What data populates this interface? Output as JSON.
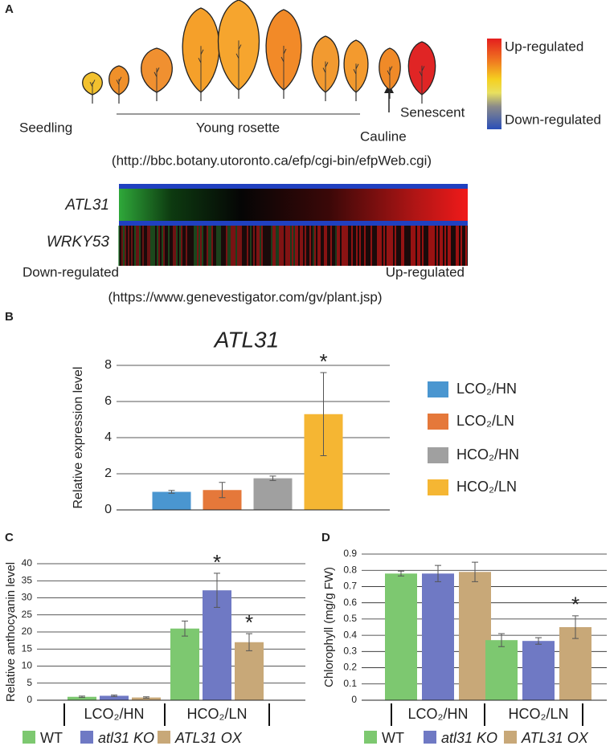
{
  "panel_a": {
    "label": "A",
    "stages": [
      "Seedling",
      "Young rosette",
      "Cauline",
      "Senescent"
    ],
    "scale_high": "Up-regulated",
    "scale_low": "Down-regulated",
    "source_1": "(http://bbc.botany.utoronto.ca/efp/cgi-bin/efpWeb.cgi)",
    "genes": [
      "ATL31",
      "WRKY53"
    ],
    "heatmap_low": "Down-regulated",
    "heatmap_high": "Up-regulated",
    "source_2": "(https://www.genevestigator.com/gv/plant.jsp)"
  },
  "chart_data": [
    {
      "type": "bar",
      "panel": "B",
      "title": "ATL31",
      "y_label": "Relative expression level",
      "ylim": [
        0,
        8
      ],
      "yticks": [
        0,
        2,
        4,
        6,
        8
      ],
      "grid": true,
      "legend": "right",
      "categories": [
        null
      ],
      "series": [
        {
          "name": "LCO₂/HN",
          "color": "#4a96d0",
          "values": [
            1.0
          ],
          "errors": [
            0.08
          ]
        },
        {
          "name": "LCO₂/LN",
          "color": "#e5783a",
          "values": [
            1.1
          ],
          "errors": [
            0.42
          ]
        },
        {
          "name": "HCO₂/HN",
          "color": "#a0a0a0",
          "values": [
            1.75
          ],
          "errors": [
            0.12
          ]
        },
        {
          "name": "HCO₂/LN",
          "color": "#f5b633",
          "values": [
            5.3
          ],
          "errors": [
            2.3
          ],
          "markers": [
            "*"
          ]
        }
      ]
    },
    {
      "type": "bar",
      "panel": "C",
      "y_label": "Relative anthocyanin level",
      "ylim": [
        0,
        40
      ],
      "yticks": [
        0,
        5,
        10,
        15,
        20,
        25,
        30,
        35,
        40
      ],
      "grid": true,
      "legend": "bottom",
      "categories": [
        "LCO₂/HN",
        "HCO₂/LN"
      ],
      "series": [
        {
          "name": "WT",
          "color": "#7dc870",
          "values": [
            1.0,
            21
          ],
          "errors": [
            0.2,
            2.2
          ]
        },
        {
          "name": "atl31 KO",
          "color": "#6f79c4",
          "values": [
            1.3,
            32.2
          ],
          "errors": [
            0.2,
            5
          ],
          "markers": [
            null,
            "*"
          ]
        },
        {
          "name": "ATL31 OX",
          "color": "#c8a878",
          "values": [
            0.8,
            17
          ],
          "errors": [
            0.2,
            2.5
          ],
          "markers": [
            null,
            "*"
          ]
        }
      ]
    },
    {
      "type": "bar",
      "panel": "D",
      "y_label": "Chlorophyll (mg/g FW)",
      "ylim": [
        0,
        0.9
      ],
      "yticks": [
        0,
        0.1,
        0.2,
        0.3,
        0.4,
        0.5,
        0.6,
        0.7,
        0.8,
        0.9
      ],
      "grid": true,
      "legend": "bottom",
      "categories": [
        "LCO₂/HN",
        "HCO₂/LN"
      ],
      "series": [
        {
          "name": "WT",
          "color": "#7dc870",
          "values": [
            0.78,
            0.37
          ],
          "errors": [
            0.015,
            0.04
          ]
        },
        {
          "name": "atl31 KO",
          "color": "#6f79c4",
          "values": [
            0.78,
            0.365
          ],
          "errors": [
            0.05,
            0.02
          ]
        },
        {
          "name": "ATL31 OX",
          "color": "#c8a878",
          "values": [
            0.79,
            0.45
          ],
          "errors": [
            0.06,
            0.07
          ],
          "markers": [
            null,
            "*"
          ]
        }
      ]
    }
  ]
}
